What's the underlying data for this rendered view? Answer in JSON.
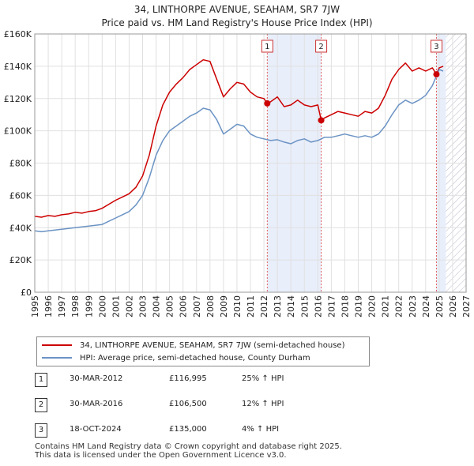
{
  "chart_data": {
    "type": "line",
    "title": "34, LINTHORPE AVENUE, SEAHAM, SR7 7JW",
    "subtitle": "Price paid vs. HM Land Registry's House Price Index (HPI)",
    "xlabel": "",
    "ylabel": "",
    "xlim": [
      1995,
      2027
    ],
    "ylim": [
      0,
      160000
    ],
    "x_ticks": [
      "1995",
      "1996",
      "1997",
      "1998",
      "1999",
      "2000",
      "2001",
      "2002",
      "2003",
      "2004",
      "2005",
      "2006",
      "2007",
      "2008",
      "2009",
      "2010",
      "2011",
      "2012",
      "2013",
      "2014",
      "2015",
      "2016",
      "2017",
      "2018",
      "2019",
      "2020",
      "2021",
      "2022",
      "2023",
      "2024",
      "2025",
      "2026",
      "2027"
    ],
    "y_ticks": [
      {
        "value": 0,
        "label": "£0"
      },
      {
        "value": 20000,
        "label": "£20K"
      },
      {
        "value": 40000,
        "label": "£40K"
      },
      {
        "value": 60000,
        "label": "£60K"
      },
      {
        "value": 80000,
        "label": "£80K"
      },
      {
        "value": 100000,
        "label": "£100K"
      },
      {
        "value": 120000,
        "label": "£120K"
      },
      {
        "value": 140000,
        "label": "£140K"
      },
      {
        "value": 160000,
        "label": "£160K"
      }
    ],
    "grid": true,
    "shaded_ranges": [
      [
        2012.25,
        2016.25
      ],
      [
        2024.8,
        2025.5
      ]
    ],
    "hatched_future_from": 2025.5,
    "series": [
      {
        "name": "34, LINTHORPE AVENUE, SEAHAM, SR7 7JW (semi-detached house)",
        "color": "#cc0000",
        "x": [
          1995.0,
          1995.5,
          1996.0,
          1996.5,
          1997.0,
          1997.5,
          1998.0,
          1998.5,
          1999.0,
          1999.5,
          2000.0,
          2000.5,
          2001.0,
          2001.5,
          2002.0,
          2002.5,
          2003.0,
          2003.5,
          2004.0,
          2004.5,
          2005.0,
          2005.5,
          2006.0,
          2006.5,
          2007.0,
          2007.5,
          2008.0,
          2008.5,
          2009.0,
          2009.5,
          2010.0,
          2010.5,
          2011.0,
          2011.5,
          2012.0,
          2012.25,
          2012.5,
          2013.0,
          2013.5,
          2014.0,
          2014.5,
          2015.0,
          2015.5,
          2016.0,
          2016.25,
          2016.5,
          2017.0,
          2017.5,
          2018.0,
          2018.5,
          2019.0,
          2019.5,
          2020.0,
          2020.5,
          2021.0,
          2021.5,
          2022.0,
          2022.5,
          2023.0,
          2023.5,
          2024.0,
          2024.5,
          2024.8,
          2025.0,
          2025.3
        ],
        "values": [
          47000,
          46500,
          47500,
          47000,
          48000,
          48500,
          49500,
          49000,
          50000,
          50500,
          52000,
          54500,
          57000,
          59000,
          61000,
          65000,
          72000,
          85000,
          103000,
          116000,
          124000,
          129000,
          133000,
          138000,
          141000,
          144000,
          143000,
          132000,
          121000,
          126000,
          130000,
          129000,
          124000,
          121000,
          120000,
          116995,
          118000,
          121000,
          115000,
          116000,
          119000,
          116000,
          115000,
          116000,
          106500,
          108000,
          110000,
          112000,
          111000,
          110000,
          109000,
          112000,
          111000,
          114000,
          122000,
          132000,
          138000,
          142000,
          137000,
          139000,
          137000,
          139000,
          135000,
          139000,
          140000
        ]
      },
      {
        "name": "HPI: Average price, semi-detached house, County Durham",
        "color": "#6b93c4",
        "x": [
          1995.0,
          1995.5,
          1996.0,
          1996.5,
          1997.0,
          1997.5,
          1998.0,
          1998.5,
          1999.0,
          1999.5,
          2000.0,
          2000.5,
          2001.0,
          2001.5,
          2002.0,
          2002.5,
          2003.0,
          2003.5,
          2004.0,
          2004.5,
          2005.0,
          2005.5,
          2006.0,
          2006.5,
          2007.0,
          2007.5,
          2008.0,
          2008.5,
          2009.0,
          2009.5,
          2010.0,
          2010.5,
          2011.0,
          2011.5,
          2012.0,
          2012.5,
          2013.0,
          2013.5,
          2014.0,
          2014.5,
          2015.0,
          2015.5,
          2016.0,
          2016.5,
          2017.0,
          2017.5,
          2018.0,
          2018.5,
          2019.0,
          2019.5,
          2020.0,
          2020.5,
          2021.0,
          2021.5,
          2022.0,
          2022.5,
          2023.0,
          2023.5,
          2024.0,
          2024.5,
          2025.0,
          2025.3
        ],
        "values": [
          38000,
          37500,
          38000,
          38500,
          39000,
          39500,
          40000,
          40500,
          41000,
          41500,
          42000,
          44000,
          46000,
          48000,
          50000,
          54000,
          60000,
          71000,
          85000,
          94000,
          100000,
          103000,
          106000,
          109000,
          111000,
          114000,
          113000,
          107000,
          98000,
          101000,
          104000,
          103000,
          98000,
          96000,
          95000,
          94000,
          94500,
          93000,
          92000,
          94000,
          95000,
          93000,
          94000,
          96000,
          96000,
          97000,
          98000,
          97000,
          96000,
          97000,
          96000,
          98000,
          103000,
          110000,
          116000,
          119000,
          117000,
          119000,
          122000,
          128000,
          138000,
          137000
        ]
      }
    ],
    "markers": [
      {
        "label": "1",
        "x": 2012.25,
        "y": 116995
      },
      {
        "label": "2",
        "x": 2016.25,
        "y": 106500
      },
      {
        "label": "3",
        "x": 2024.8,
        "y": 135000
      }
    ]
  },
  "legend": {
    "property": "34, LINTHORPE AVENUE, SEAHAM, SR7 7JW (semi-detached house)",
    "hpi": "HPI: Average price, semi-detached house, County Durham"
  },
  "transactions": [
    {
      "num": "1",
      "date": "30-MAR-2012",
      "price": "£116,995",
      "hpi": "25% ↑ HPI"
    },
    {
      "num": "2",
      "date": "30-MAR-2016",
      "price": "£106,500",
      "hpi": "12% ↑ HPI"
    },
    {
      "num": "3",
      "date": "18-OCT-2024",
      "price": "£135,000",
      "hpi": "4% ↑ HPI"
    }
  ],
  "footer": {
    "line1": "Contains HM Land Registry data © Crown copyright and database right 2025.",
    "line2": "This data is licensed under the Open Government Licence v3.0."
  }
}
